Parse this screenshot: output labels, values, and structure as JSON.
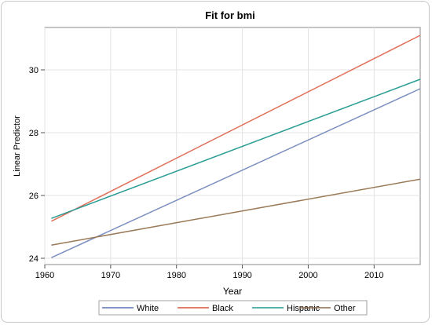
{
  "chart_data": {
    "type": "line",
    "title": "Fit for bmi",
    "xlabel": "Year",
    "ylabel": "Linear Predictor",
    "xlim": [
      1960,
      2017
    ],
    "ylim": [
      23.8,
      31.35
    ],
    "x_ticks": [
      1960,
      1970,
      1980,
      1990,
      2000,
      2010
    ],
    "y_ticks": [
      24,
      26,
      28,
      30
    ],
    "grid": true,
    "legend_position": "bottom",
    "series": [
      {
        "name": "White",
        "color": "#7b8fbf",
        "legend_color": "#5a74b3",
        "x": [
          1961,
          2017
        ],
        "y": [
          24.02,
          29.4
        ]
      },
      {
        "name": "Black",
        "color": "#e0705a",
        "legend_color": "#d9553c",
        "x": [
          1961,
          2017
        ],
        "y": [
          25.18,
          31.1
        ]
      },
      {
        "name": "Hispanic",
        "color": "#2a9d94",
        "legend_color": "#1f9b91",
        "x": [
          1961,
          2017
        ],
        "y": [
          25.27,
          29.7
        ]
      },
      {
        "name": "Other",
        "color": "#9a7a58",
        "legend_color": "#8c6a4a",
        "x": [
          1961,
          2017
        ],
        "y": [
          24.42,
          26.52
        ]
      }
    ]
  }
}
